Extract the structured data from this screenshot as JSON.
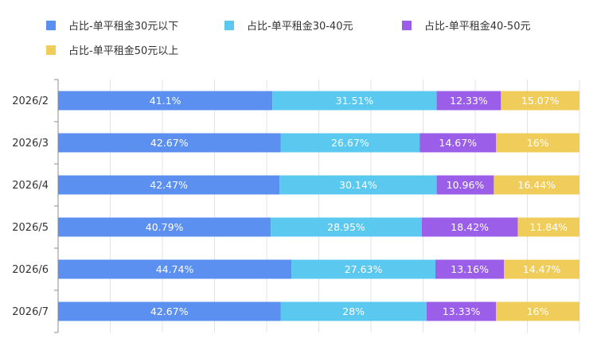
{
  "chart_data": {
    "type": "bar",
    "orientation": "horizontal",
    "stacked": true,
    "percent_stacked": true,
    "categories": [
      "2026/2",
      "2026/3",
      "2026/4",
      "2026/5",
      "2026/6",
      "2026/7"
    ],
    "series": [
      {
        "name": "占比-单平租金30元以下",
        "color": "#5b8ff0",
        "values": [
          41.1,
          42.67,
          42.47,
          40.79,
          44.74,
          42.67
        ]
      },
      {
        "name": "占比-单平租金30-40元",
        "color": "#5bc8f0",
        "values": [
          31.51,
          26.67,
          30.14,
          28.95,
          27.63,
          28
        ]
      },
      {
        "name": "占比-单平租金40-50元",
        "color": "#9b5ee8",
        "values": [
          12.33,
          14.67,
          10.96,
          18.42,
          13.16,
          13.33
        ]
      },
      {
        "name": "占比-单平租金50元以上",
        "color": "#f0cc5b",
        "values": [
          15.07,
          16,
          16.44,
          11.84,
          14.47,
          16
        ]
      }
    ],
    "data_labels": [
      [
        "41.1%",
        "31.51%",
        "12.33%",
        "15.07%"
      ],
      [
        "42.67%",
        "26.67%",
        "14.67%",
        "16%"
      ],
      [
        "42.47%",
        "30.14%",
        "10.96%",
        "16.44%"
      ],
      [
        "40.79%",
        "28.95%",
        "18.42%",
        "11.84%"
      ],
      [
        "44.74%",
        "27.63%",
        "13.16%",
        "14.47%"
      ],
      [
        "42.67%",
        "28%",
        "13.33%",
        "16%"
      ]
    ],
    "xlim": [
      0,
      100
    ],
    "grid": true,
    "legend_position": "top-left",
    "title": "",
    "xlabel": "",
    "ylabel": ""
  }
}
